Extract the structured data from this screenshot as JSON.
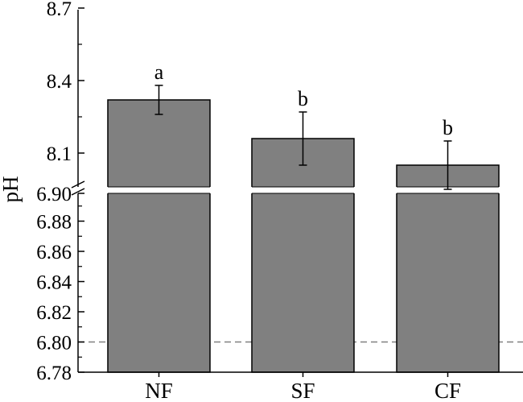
{
  "chart_data": {
    "type": "bar",
    "categories": [
      "NF",
      "SF",
      "CF"
    ],
    "values": [
      8.32,
      8.16,
      8.05
    ],
    "error": [
      0.06,
      0.11,
      0.1
    ],
    "significance": [
      "a",
      "b",
      "b"
    ],
    "bar_color": "#808080",
    "title": "",
    "xlabel": "",
    "ylabel": "pH",
    "axis_break": true,
    "ylim_upper": [
      7.98,
      8.7
    ],
    "ylim_lower": [
      6.78,
      6.9
    ],
    "yticks_upper": [
      "8.7",
      "8.4",
      "8.1"
    ],
    "yticks_lower": [
      "6.90",
      "6.88",
      "6.86",
      "6.84",
      "6.82",
      "6.80",
      "6.78"
    ],
    "reference_line": {
      "y": 6.8,
      "style": "dashed",
      "color": "#808080"
    },
    "grid": false,
    "legend": "none"
  }
}
